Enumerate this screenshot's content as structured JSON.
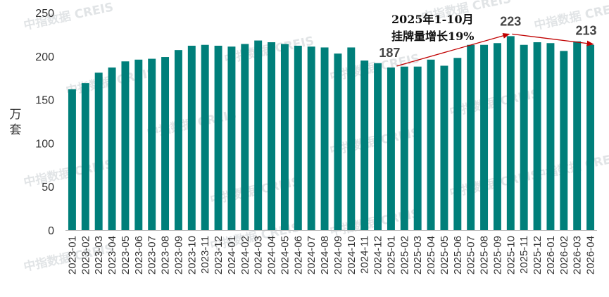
{
  "chart_data": {
    "type": "bar",
    "ylabel": "万套",
    "ylim": [
      0,
      250
    ],
    "yticks": [
      0,
      50,
      100,
      150,
      200,
      250
    ],
    "bar_color": "#007f7a",
    "arrow_color": "#c00000",
    "categories": [
      "2023-01",
      "2023-02",
      "2023-03",
      "2023-04",
      "2023-05",
      "2023-06",
      "2023-07",
      "2023-08",
      "2023-09",
      "2023-10",
      "2023-11",
      "2023-12",
      "2024-01",
      "2024-02",
      "2024-03",
      "2024-04",
      "2024-05",
      "2024-06",
      "2024-07",
      "2024-08",
      "2024-09",
      "2024-10",
      "2024-11",
      "2024-12",
      "2025-01",
      "2025-02",
      "2025-03",
      "2025-04",
      "2025-05",
      "2025-06",
      "2025-07",
      "2025-08",
      "2025-09",
      "2025-10",
      "2025-11",
      "2025-12",
      "2026-01",
      "2026-02",
      "2026-03",
      "2026-04"
    ],
    "values": [
      162,
      169,
      181,
      187,
      194,
      196,
      197,
      199,
      207,
      212,
      213,
      212,
      211,
      214,
      218,
      216,
      214,
      212,
      211,
      210,
      203,
      210,
      195,
      192,
      187,
      188,
      188,
      196,
      189,
      198,
      213,
      213,
      215,
      223,
      213,
      216,
      215,
      206,
      217,
      213
    ],
    "annotations": {
      "text_line1": "2025年1-10月",
      "text_line2": "挂牌量增长19%",
      "label_start": "187",
      "label_peak": "223",
      "label_end": "213"
    },
    "watermark": "中指数据 CREIS"
  }
}
